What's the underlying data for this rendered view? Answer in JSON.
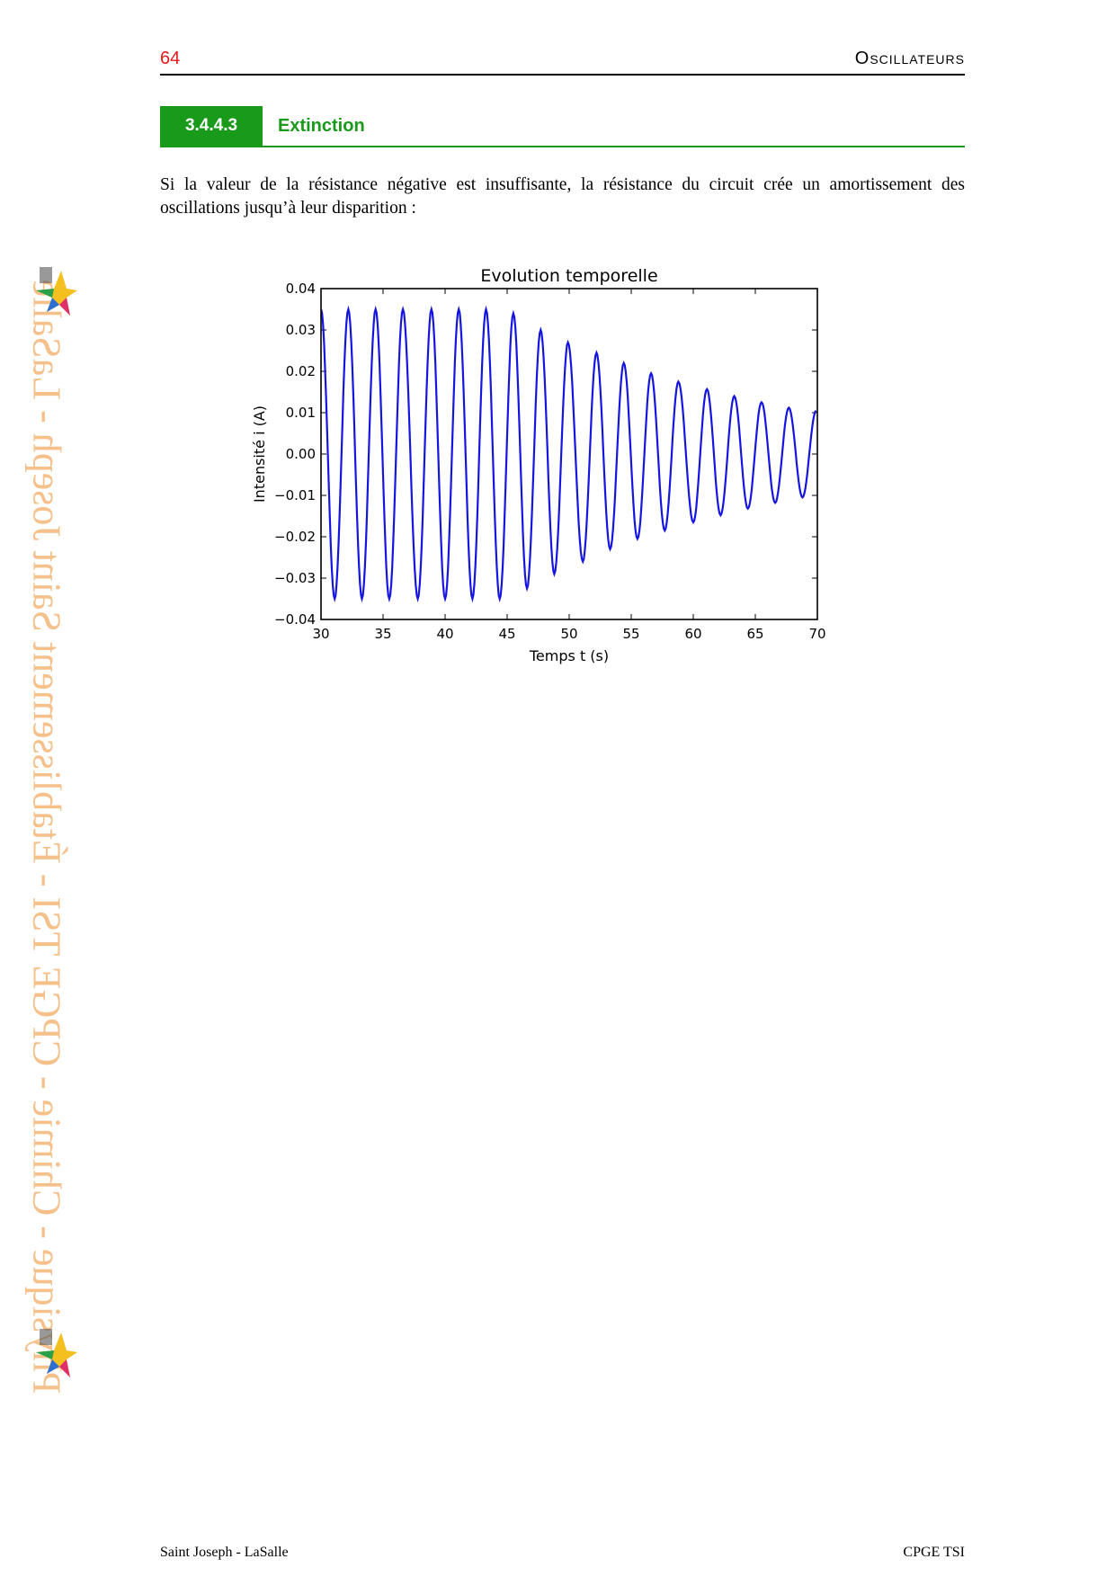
{
  "header": {
    "page_number": "64",
    "chapter": "Oscillateurs"
  },
  "section": {
    "number": "3.4.4.3",
    "title": "Extinction"
  },
  "paragraph": "Si la valeur de la résistance négative est insuffisante, la résistance du circuit crée un amortissement des oscillations jusqu’à leur disparition :",
  "watermark": "Physique - Chimie - CPGE TSI - Établissement Saint Joseph - LaSalle",
  "logo_icon": "star-logo-icon",
  "footer": {
    "left": "Saint Joseph - LaSalle",
    "right": "CPGE TSI"
  },
  "chart_data": {
    "type": "line",
    "title": "Evolution temporelle",
    "xlabel": "Temps t (s)",
    "ylabel": "Intensité i (A)",
    "xlim": [
      30,
      70
    ],
    "ylim": [
      -0.04,
      0.04
    ],
    "xticks": [
      "30",
      "35",
      "40",
      "45",
      "50",
      "55",
      "60",
      "65",
      "70"
    ],
    "yticks": [
      "−0.04",
      "−0.03",
      "−0.02",
      "−0.01",
      "0.00",
      "0.01",
      "0.02",
      "0.03",
      "0.04"
    ],
    "grid": false,
    "color": "#1515e0",
    "series": [
      {
        "peaks_t": [
          32.2,
          34.4,
          36.6,
          38.9,
          41.1,
          43.3,
          45.5,
          47.7,
          49.9,
          52.2,
          54.4,
          56.6,
          58.8,
          61.1,
          63.3,
          65.5,
          67.7
        ],
        "peaks_i": [
          0.035,
          0.035,
          0.035,
          0.035,
          0.035,
          0.035,
          0.034,
          0.03,
          0.027,
          0.0245,
          0.022,
          0.0195,
          0.0175,
          0.0157,
          0.014,
          0.0125,
          0.0112
        ],
        "troughs_t": [
          31.1,
          33.3,
          35.5,
          37.8,
          40.0,
          42.2,
          44.4,
          46.6,
          48.8,
          51.1,
          53.3,
          55.5,
          57.7,
          60.0,
          62.2,
          64.4,
          66.6,
          68.8
        ],
        "troughs_i": [
          -0.035,
          -0.035,
          -0.035,
          -0.035,
          -0.035,
          -0.035,
          -0.035,
          -0.0325,
          -0.029,
          -0.026,
          -0.023,
          -0.0205,
          -0.0185,
          -0.0165,
          -0.0148,
          -0.0132,
          -0.0118,
          -0.0105
        ]
      }
    ]
  }
}
